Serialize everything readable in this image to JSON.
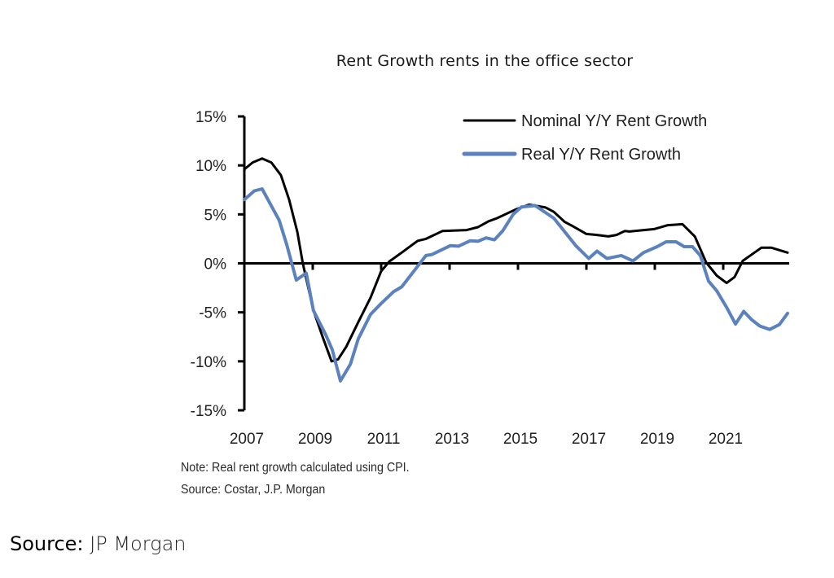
{
  "chart_data": {
    "type": "line",
    "title": "Rent Growth rents in the office sector",
    "xlabel": "",
    "ylabel": "",
    "xlim": [
      2007,
      2023
    ],
    "ylim": [
      -15,
      15
    ],
    "x_ticks": [
      2007,
      2009,
      2011,
      2013,
      2015,
      2017,
      2019,
      2021
    ],
    "x_tick_labels": [
      "2007",
      "2009",
      "2011",
      "2013",
      "2015",
      "2017",
      "2019",
      "2021"
    ],
    "y_ticks": [
      -15,
      -10,
      -5,
      0,
      5,
      10,
      15
    ],
    "y_tick_labels": [
      "-15%",
      "-10%",
      "-5%",
      "0%",
      "5%",
      "10%",
      "15%"
    ],
    "grid": false,
    "legend_position": "top-right",
    "series": [
      {
        "name": "Nominal Y/Y Rent Growth",
        "color": "#000000",
        "x": [
          2007.0,
          2007.24,
          2007.52,
          2007.79,
          2008.07,
          2008.31,
          2008.55,
          2008.71,
          2009.02,
          2009.31,
          2009.55,
          2009.74,
          2009.98,
          2010.33,
          2010.69,
          2011.0,
          2011.24,
          2011.6,
          2012.07,
          2012.31,
          2012.79,
          2013.5,
          2013.83,
          2014.14,
          2014.38,
          2014.93,
          2015.33,
          2015.81,
          2016.05,
          2016.36,
          2016.6,
          2017.0,
          2017.31,
          2017.64,
          2017.88,
          2018.12,
          2018.26,
          2018.98,
          2019.38,
          2019.81,
          2020.17,
          2020.5,
          2020.81,
          2021.1,
          2021.33,
          2021.57,
          2021.83,
          2022.12,
          2022.4,
          2022.88
        ],
        "values": [
          9.6,
          10.3,
          10.7,
          10.3,
          9.0,
          6.5,
          3.2,
          0.0,
          -4.8,
          -7.7,
          -10.0,
          -9.8,
          -8.5,
          -6.0,
          -3.5,
          -0.8,
          0.2,
          1.1,
          2.3,
          2.5,
          3.3,
          3.4,
          3.7,
          4.3,
          4.6,
          5.5,
          6.0,
          5.7,
          5.25,
          4.25,
          3.8,
          3.0,
          2.9,
          2.75,
          2.9,
          3.3,
          3.25,
          3.5,
          3.9,
          4.0,
          2.75,
          0.1,
          -1.25,
          -2.0,
          -1.4,
          0.25,
          0.9,
          1.6,
          1.6,
          1.1
        ]
      },
      {
        "name": "Real Y/Y Rent Growth",
        "color": "#5b82bf",
        "x": [
          2007.0,
          2007.29,
          2007.52,
          2008.02,
          2008.24,
          2008.52,
          2008.81,
          2009.02,
          2009.38,
          2009.57,
          2009.81,
          2010.1,
          2010.33,
          2010.69,
          2011.0,
          2011.36,
          2011.6,
          2012.31,
          2012.48,
          2013.02,
          2013.26,
          2013.6,
          2013.83,
          2014.07,
          2014.31,
          2014.55,
          2014.86,
          2015.1,
          2015.5,
          2016.05,
          2016.69,
          2017.07,
          2017.31,
          2017.6,
          2018.02,
          2018.36,
          2018.67,
          2019.07,
          2019.33,
          2019.62,
          2019.86,
          2020.1,
          2020.33,
          2020.57,
          2020.81,
          2021.1,
          2021.36,
          2021.6,
          2021.83,
          2022.07,
          2022.36,
          2022.64,
          2022.88
        ],
        "values": [
          6.5,
          7.4,
          7.6,
          4.4,
          1.9,
          -1.7,
          -1.0,
          -4.8,
          -7.3,
          -8.8,
          -12.0,
          -10.3,
          -7.7,
          -5.2,
          -4.1,
          -2.9,
          -2.4,
          0.8,
          0.9,
          1.8,
          1.75,
          2.3,
          2.25,
          2.6,
          2.4,
          3.3,
          5.0,
          5.75,
          5.9,
          4.6,
          1.8,
          0.5,
          1.25,
          0.5,
          0.8,
          0.25,
          1.1,
          1.7,
          2.2,
          2.2,
          1.7,
          1.7,
          0.8,
          -1.8,
          -2.8,
          -4.5,
          -6.2,
          -4.9,
          -5.75,
          -6.4,
          -6.75,
          -6.25,
          -5.1
        ]
      }
    ],
    "annotations": [
      "Note: Real rent growth calculated using CPI.",
      "Source: Costar, J.P. Morgan"
    ]
  },
  "footer": {
    "source_label": "Source:",
    "source_value": "JP Morgan"
  }
}
